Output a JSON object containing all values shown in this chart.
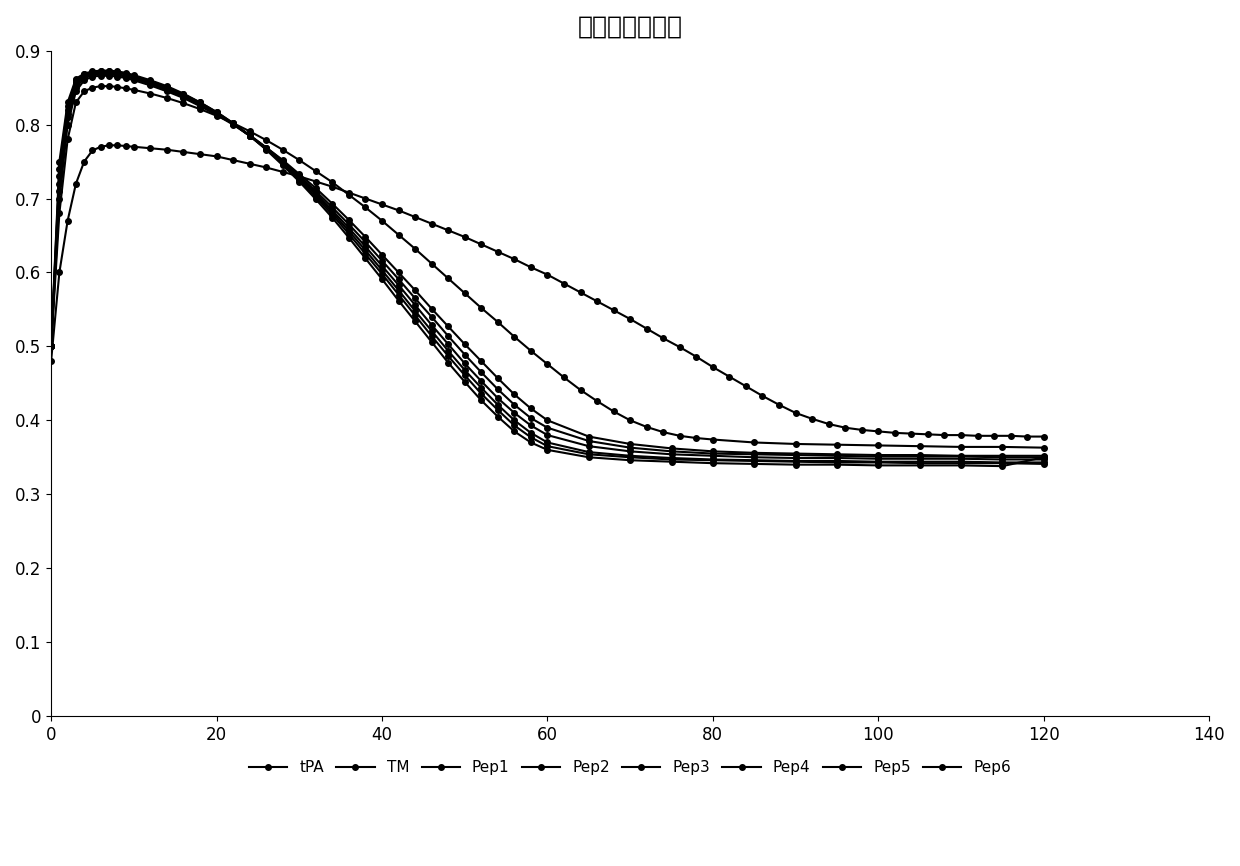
{
  "title": "溶栓肽活性实验",
  "xlim": [
    0,
    140
  ],
  "ylim": [
    0,
    0.9
  ],
  "xticks": [
    0,
    20,
    40,
    60,
    80,
    100,
    120,
    140
  ],
  "yticks": [
    0,
    0.1,
    0.2,
    0.3,
    0.4,
    0.5,
    0.6,
    0.7,
    0.8,
    0.9
  ],
  "series": {
    "tPA": {
      "x": [
        0,
        1,
        2,
        3,
        4,
        5,
        6,
        7,
        8,
        9,
        10,
        12,
        14,
        16,
        18,
        20,
        22,
        24,
        26,
        28,
        30,
        32,
        34,
        36,
        38,
        40,
        42,
        44,
        46,
        48,
        50,
        52,
        54,
        56,
        58,
        60,
        62,
        64,
        66,
        68,
        70,
        72,
        74,
        76,
        78,
        80,
        82,
        84,
        86,
        88,
        90,
        92,
        94,
        96,
        98,
        100,
        102,
        104,
        106,
        108,
        110,
        112,
        114,
        116,
        118,
        120
      ],
      "y": [
        0.48,
        0.6,
        0.67,
        0.72,
        0.75,
        0.765,
        0.77,
        0.772,
        0.772,
        0.771,
        0.77,
        0.768,
        0.766,
        0.763,
        0.76,
        0.757,
        0.752,
        0.747,
        0.742,
        0.736,
        0.73,
        0.723,
        0.716,
        0.708,
        0.7,
        0.692,
        0.684,
        0.675,
        0.666,
        0.657,
        0.648,
        0.638,
        0.628,
        0.618,
        0.607,
        0.597,
        0.585,
        0.573,
        0.561,
        0.549,
        0.537,
        0.524,
        0.511,
        0.499,
        0.486,
        0.472,
        0.459,
        0.446,
        0.433,
        0.421,
        0.41,
        0.402,
        0.395,
        0.39,
        0.387,
        0.385,
        0.383,
        0.382,
        0.381,
        0.38,
        0.38,
        0.379,
        0.379,
        0.379,
        0.378,
        0.378
      ]
    },
    "TM": {
      "x": [
        0,
        1,
        2,
        3,
        4,
        5,
        6,
        7,
        8,
        9,
        10,
        12,
        14,
        16,
        18,
        20,
        22,
        24,
        26,
        28,
        30,
        32,
        34,
        36,
        38,
        40,
        42,
        44,
        46,
        48,
        50,
        52,
        54,
        56,
        58,
        60,
        62,
        64,
        66,
        68,
        70,
        72,
        74,
        76,
        78,
        80,
        85,
        90,
        95,
        100,
        105,
        110,
        115,
        120
      ],
      "y": [
        0.5,
        0.68,
        0.78,
        0.83,
        0.845,
        0.85,
        0.852,
        0.852,
        0.851,
        0.849,
        0.847,
        0.842,
        0.836,
        0.829,
        0.821,
        0.812,
        0.802,
        0.791,
        0.779,
        0.766,
        0.752,
        0.737,
        0.722,
        0.705,
        0.688,
        0.67,
        0.651,
        0.632,
        0.612,
        0.592,
        0.572,
        0.552,
        0.533,
        0.513,
        0.494,
        0.476,
        0.458,
        0.441,
        0.426,
        0.412,
        0.4,
        0.391,
        0.384,
        0.379,
        0.376,
        0.374,
        0.37,
        0.368,
        0.367,
        0.366,
        0.365,
        0.364,
        0.364,
        0.363
      ]
    },
    "Pep1": {
      "x": [
        0,
        1,
        2,
        3,
        4,
        5,
        6,
        7,
        8,
        9,
        10,
        12,
        14,
        16,
        18,
        20,
        22,
        24,
        26,
        28,
        30,
        32,
        34,
        36,
        38,
        40,
        42,
        44,
        46,
        48,
        50,
        52,
        54,
        56,
        58,
        60,
        65,
        70,
        75,
        80,
        85,
        90,
        95,
        100,
        105,
        110,
        115,
        120
      ],
      "y": [
        0.5,
        0.7,
        0.8,
        0.845,
        0.86,
        0.865,
        0.866,
        0.866,
        0.865,
        0.863,
        0.86,
        0.853,
        0.845,
        0.836,
        0.825,
        0.813,
        0.8,
        0.785,
        0.769,
        0.752,
        0.733,
        0.714,
        0.693,
        0.671,
        0.648,
        0.624,
        0.6,
        0.576,
        0.551,
        0.527,
        0.503,
        0.48,
        0.457,
        0.435,
        0.416,
        0.4,
        0.378,
        0.368,
        0.362,
        0.358,
        0.356,
        0.355,
        0.354,
        0.353,
        0.353,
        0.352,
        0.352,
        0.352
      ]
    },
    "Pep2": {
      "x": [
        0,
        1,
        2,
        3,
        4,
        5,
        6,
        7,
        8,
        9,
        10,
        12,
        14,
        16,
        18,
        20,
        22,
        24,
        26,
        28,
        30,
        32,
        34,
        36,
        38,
        40,
        42,
        44,
        46,
        48,
        50,
        52,
        54,
        56,
        58,
        60,
        65,
        70,
        75,
        80,
        85,
        90,
        95,
        100,
        105,
        110,
        115,
        120
      ],
      "y": [
        0.5,
        0.71,
        0.81,
        0.85,
        0.863,
        0.867,
        0.868,
        0.868,
        0.867,
        0.865,
        0.862,
        0.855,
        0.847,
        0.838,
        0.827,
        0.815,
        0.801,
        0.786,
        0.769,
        0.751,
        0.731,
        0.71,
        0.688,
        0.665,
        0.641,
        0.616,
        0.591,
        0.565,
        0.54,
        0.514,
        0.489,
        0.465,
        0.442,
        0.421,
        0.403,
        0.39,
        0.372,
        0.363,
        0.358,
        0.355,
        0.354,
        0.353,
        0.352,
        0.351,
        0.351,
        0.351,
        0.35,
        0.35
      ]
    },
    "Pep3": {
      "x": [
        0,
        1,
        2,
        3,
        4,
        5,
        6,
        7,
        8,
        9,
        10,
        12,
        14,
        16,
        18,
        20,
        22,
        24,
        26,
        28,
        30,
        32,
        34,
        36,
        38,
        40,
        42,
        44,
        46,
        48,
        50,
        52,
        54,
        56,
        58,
        60,
        65,
        70,
        75,
        80,
        85,
        90,
        95,
        100,
        105,
        110,
        115,
        120
      ],
      "y": [
        0.5,
        0.72,
        0.815,
        0.855,
        0.865,
        0.869,
        0.869,
        0.869,
        0.868,
        0.866,
        0.863,
        0.856,
        0.848,
        0.839,
        0.828,
        0.815,
        0.801,
        0.785,
        0.768,
        0.749,
        0.729,
        0.707,
        0.684,
        0.66,
        0.635,
        0.609,
        0.583,
        0.556,
        0.529,
        0.503,
        0.477,
        0.453,
        0.43,
        0.41,
        0.393,
        0.38,
        0.365,
        0.358,
        0.354,
        0.352,
        0.35,
        0.349,
        0.349,
        0.348,
        0.348,
        0.348,
        0.347,
        0.347
      ]
    },
    "Pep4": {
      "x": [
        0,
        1,
        2,
        3,
        4,
        5,
        6,
        7,
        8,
        9,
        10,
        12,
        14,
        16,
        18,
        20,
        22,
        24,
        26,
        28,
        30,
        32,
        34,
        36,
        38,
        40,
        42,
        44,
        46,
        48,
        50,
        52,
        54,
        56,
        58,
        60,
        65,
        70,
        75,
        80,
        85,
        90,
        95,
        100,
        105,
        110,
        115,
        120
      ],
      "y": [
        0.5,
        0.73,
        0.82,
        0.857,
        0.866,
        0.87,
        0.871,
        0.871,
        0.87,
        0.868,
        0.865,
        0.858,
        0.85,
        0.84,
        0.829,
        0.816,
        0.801,
        0.785,
        0.767,
        0.748,
        0.727,
        0.705,
        0.681,
        0.656,
        0.63,
        0.603,
        0.576,
        0.548,
        0.521,
        0.494,
        0.468,
        0.444,
        0.421,
        0.4,
        0.383,
        0.37,
        0.357,
        0.352,
        0.349,
        0.347,
        0.346,
        0.345,
        0.345,
        0.344,
        0.344,
        0.344,
        0.343,
        0.343
      ]
    },
    "Pep5": {
      "x": [
        0,
        1,
        2,
        3,
        4,
        5,
        6,
        7,
        8,
        9,
        10,
        12,
        14,
        16,
        18,
        20,
        22,
        24,
        26,
        28,
        30,
        32,
        34,
        36,
        38,
        40,
        42,
        44,
        46,
        48,
        50,
        52,
        54,
        56,
        58,
        60,
        65,
        70,
        75,
        80,
        85,
        90,
        95,
        100,
        105,
        110,
        115,
        120
      ],
      "y": [
        0.5,
        0.74,
        0.825,
        0.86,
        0.868,
        0.871,
        0.872,
        0.872,
        0.871,
        0.869,
        0.866,
        0.859,
        0.851,
        0.841,
        0.83,
        0.817,
        0.802,
        0.785,
        0.767,
        0.747,
        0.725,
        0.702,
        0.678,
        0.652,
        0.625,
        0.598,
        0.57,
        0.542,
        0.514,
        0.487,
        0.461,
        0.436,
        0.414,
        0.393,
        0.377,
        0.365,
        0.354,
        0.35,
        0.347,
        0.346,
        0.345,
        0.344,
        0.343,
        0.343,
        0.342,
        0.342,
        0.342,
        0.341
      ]
    },
    "Pep6": {
      "x": [
        0,
        1,
        2,
        3,
        4,
        5,
        6,
        7,
        8,
        9,
        10,
        12,
        14,
        16,
        18,
        20,
        22,
        24,
        26,
        28,
        30,
        32,
        34,
        36,
        38,
        40,
        42,
        44,
        46,
        48,
        50,
        52,
        54,
        56,
        58,
        60,
        65,
        70,
        75,
        80,
        85,
        90,
        95,
        100,
        105,
        110,
        115,
        120
      ],
      "y": [
        0.5,
        0.75,
        0.83,
        0.862,
        0.869,
        0.872,
        0.873,
        0.873,
        0.872,
        0.87,
        0.867,
        0.86,
        0.852,
        0.842,
        0.83,
        0.817,
        0.802,
        0.785,
        0.766,
        0.745,
        0.723,
        0.699,
        0.674,
        0.647,
        0.619,
        0.591,
        0.562,
        0.534,
        0.506,
        0.478,
        0.452,
        0.427,
        0.405,
        0.385,
        0.37,
        0.36,
        0.35,
        0.346,
        0.344,
        0.342,
        0.341,
        0.34,
        0.34,
        0.339,
        0.339,
        0.339,
        0.338,
        0.35
      ]
    }
  },
  "legend_labels": [
    "tPA",
    "TM",
    "Pep1",
    "Pep2",
    "Pep3",
    "Pep4",
    "Pep5",
    "Pep6"
  ],
  "line_color": "#000000",
  "marker": "o",
  "markersize": 4,
  "linewidth": 1.5,
  "title_fontsize": 18,
  "tick_fontsize": 12,
  "legend_fontsize": 11,
  "background_color": "#ffffff"
}
